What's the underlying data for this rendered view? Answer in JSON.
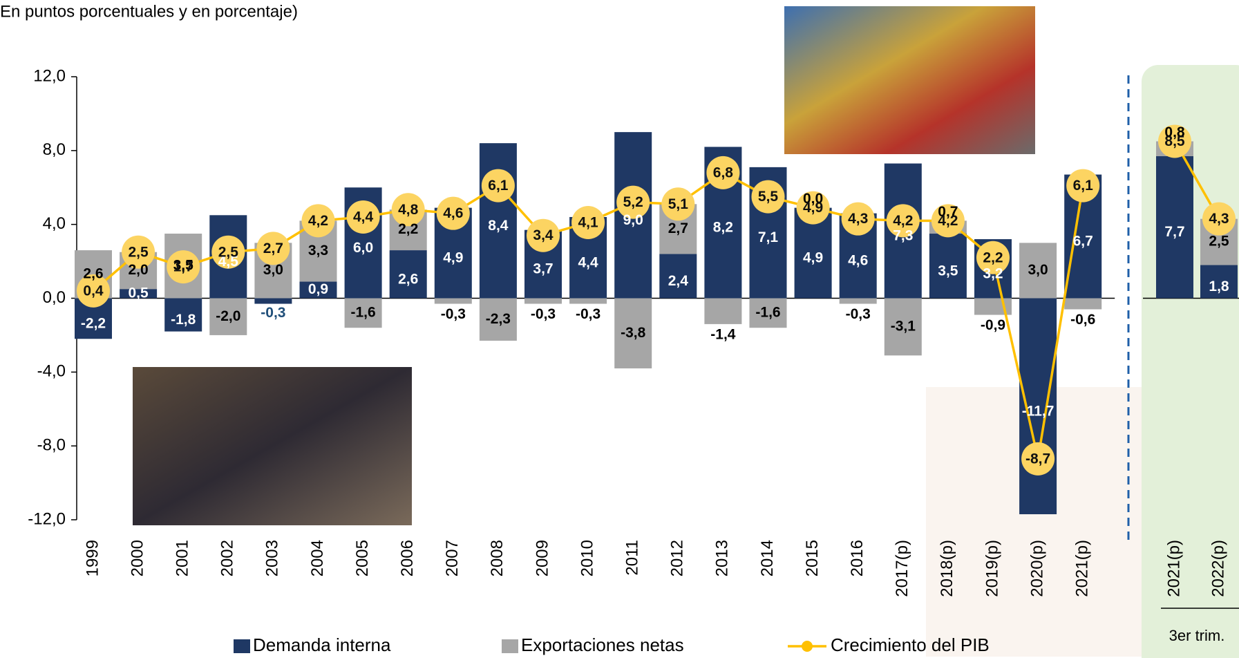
{
  "chart_data": {
    "type": "bar",
    "subtitle": "(En puntos porcentuales y en porcentaje)",
    "categories": [
      "1999",
      "2000",
      "2001",
      "2002",
      "2003",
      "2004",
      "2005",
      "2006",
      "2007",
      "2008",
      "2009",
      "2010",
      "2011",
      "2012",
      "2013",
      "2014",
      "2015",
      "2016",
      "2017(p)",
      "2018(p)",
      "2019(p)",
      "2020(p)",
      "2021(p)"
    ],
    "series": [
      {
        "name": "Demanda interna",
        "color": "#1f3864",
        "kind": "bar",
        "values": [
          -2.2,
          0.5,
          -1.8,
          4.5,
          -0.3,
          0.9,
          6.0,
          2.6,
          4.9,
          8.4,
          3.7,
          4.4,
          9.0,
          2.4,
          8.2,
          7.1,
          4.9,
          4.6,
          7.3,
          3.5,
          3.2,
          -11.7,
          6.7
        ],
        "value_labels": [
          "-2,2",
          "0,5",
          "-1,8",
          "4,5",
          "-0,3",
          "0,9",
          "6,0",
          "2,6",
          "4,9",
          "8,4",
          "3,7",
          "4,4",
          "9,0",
          "2,4",
          "8,2",
          "7,1",
          "4,9",
          "4,6",
          "7,3",
          "3,5",
          "3,2",
          "-11,7",
          "6,7"
        ]
      },
      {
        "name": "Exportaciones netas",
        "color": "#a6a6a6",
        "kind": "bar",
        "values": [
          2.6,
          2.0,
          3.5,
          -2.0,
          3.0,
          3.3,
          -1.6,
          2.2,
          -0.3,
          -2.3,
          -0.3,
          -0.3,
          -3.8,
          2.7,
          -1.4,
          -1.6,
          0.0,
          -0.3,
          -3.1,
          0.7,
          -0.9,
          3.0,
          -0.6
        ],
        "value_labels": [
          "2,6",
          "2,0",
          "3,5",
          "-2,0",
          "3,0",
          "3,3",
          "-1,6",
          "2,2",
          "-0,3",
          "-2,3",
          "-0,3",
          "-0,3",
          "-3,8",
          "2,7",
          "-1,4",
          "-1,6",
          "0,0",
          "-0,3",
          "-3,1",
          "0,7",
          "-0,9",
          "3,0",
          "-0,6"
        ]
      },
      {
        "name": "Crecimiento del PIB",
        "color": "#ffc000",
        "kind": "line",
        "values": [
          0.4,
          2.5,
          1.7,
          2.5,
          2.7,
          4.2,
          4.4,
          4.8,
          4.6,
          6.1,
          3.4,
          4.1,
          5.2,
          5.1,
          6.8,
          5.5,
          4.9,
          4.3,
          4.2,
          4.2,
          2.2,
          -8.7,
          6.1
        ],
        "value_labels": [
          "0,4",
          "2,5",
          "1,7",
          "2,5",
          "2,7",
          "4,2",
          "4,4",
          "4,8",
          "4,6",
          "6,1",
          "3,4",
          "4,1",
          "5,2",
          "5,1",
          "6,8",
          "5,5",
          "4,9",
          "4,3",
          "4,2",
          "4,2",
          "2,2",
          "-8,7",
          "6,1"
        ]
      }
    ],
    "panel": {
      "label": "3er trim.",
      "categories": [
        "2021(p)",
        "2022(p)"
      ],
      "series": [
        {
          "values": [
            7.7,
            1.8
          ],
          "value_labels": [
            "7,7",
            "1,8"
          ]
        },
        {
          "values": [
            0.8,
            2.5
          ],
          "value_labels": [
            "0,8",
            "2,5"
          ]
        },
        {
          "values": [
            8.5,
            4.3
          ],
          "value_labels": [
            "8,5",
            "4,3"
          ]
        }
      ]
    },
    "ylim": [
      -12,
      12
    ],
    "yticks": [
      {
        "value": -12,
        "label": "-12,0"
      },
      {
        "value": -8,
        "label": "-8,0"
      },
      {
        "value": -4,
        "label": "-4,0"
      },
      {
        "value": 0,
        "label": "0,0"
      },
      {
        "value": 4,
        "label": "4,0"
      },
      {
        "value": 8,
        "label": "8,0"
      },
      {
        "value": 12,
        "label": "12,0"
      }
    ],
    "legend": "bottom"
  }
}
